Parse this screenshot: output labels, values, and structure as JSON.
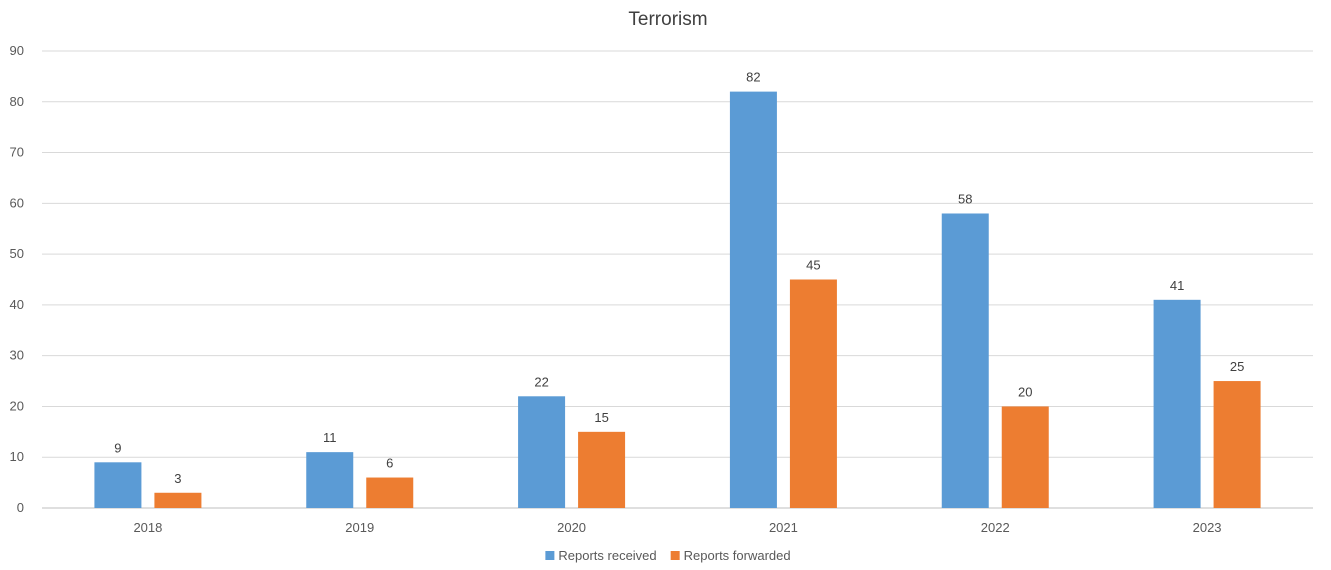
{
  "chart_data": {
    "type": "bar",
    "title": "Terrorism",
    "categories": [
      "2018",
      "2019",
      "2020",
      "2021",
      "2022",
      "2023"
    ],
    "series": [
      {
        "name": "Reports received",
        "color": "#5b9bd5",
        "values": [
          9,
          11,
          22,
          82,
          58,
          41
        ]
      },
      {
        "name": "Reports forwarded",
        "color": "#ed7d31",
        "values": [
          3,
          6,
          15,
          45,
          20,
          25
        ]
      }
    ],
    "ylim": [
      0,
      90
    ],
    "yticks": [
      0,
      10,
      20,
      30,
      40,
      50,
      60,
      70,
      80,
      90
    ],
    "grid": true,
    "data_labels": true,
    "legend": "bottom-center",
    "xlabel": "",
    "ylabel": ""
  }
}
